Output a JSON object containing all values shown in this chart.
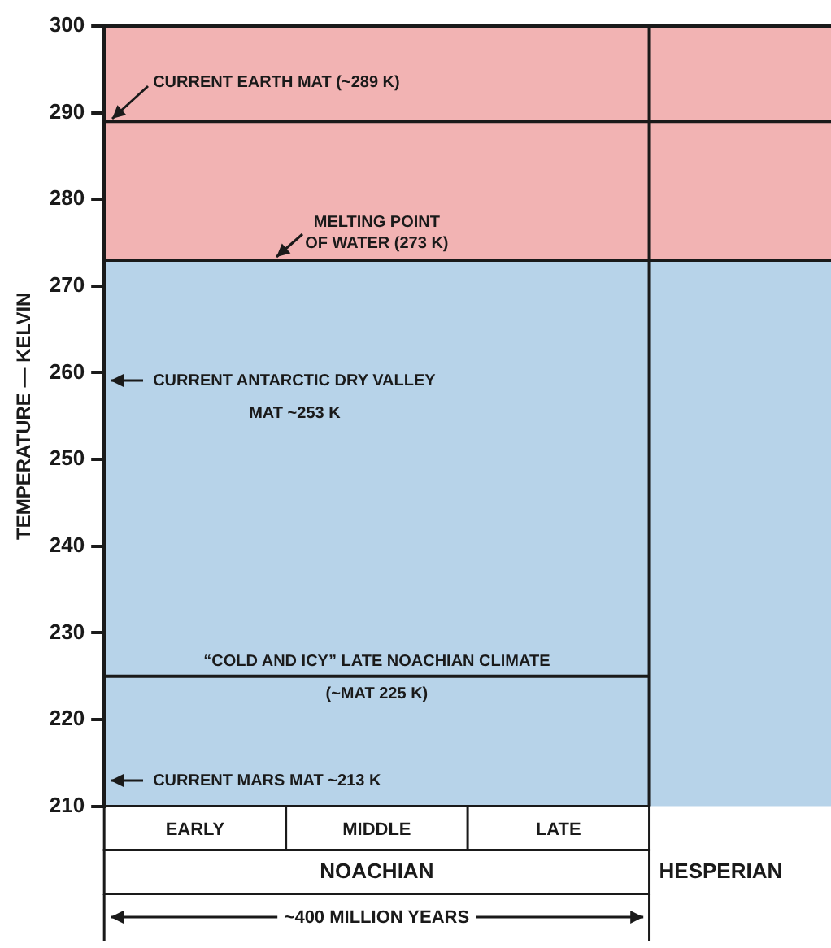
{
  "chart_data": {
    "type": "bar",
    "ylabel": "TEMPERATURE — KELVIN",
    "categories": [
      "EARLY",
      "MIDDLE",
      "LATE",
      null
    ],
    "ylim": [
      210,
      300
    ],
    "yticks": [
      210,
      220,
      230,
      240,
      250,
      260,
      270,
      280,
      290,
      300
    ],
    "bands": [
      {
        "axis": "y",
        "from": 210,
        "to": 273,
        "color": "#b7d3e9"
      },
      {
        "axis": "y",
        "from": 273,
        "to": 300,
        "color": "#f2b3b3"
      }
    ],
    "ref_lines": [
      {
        "axis": "y",
        "value": 289,
        "label": "CURRENT EARTH MAT (~289 K)",
        "color": "#1a1a1a"
      },
      {
        "axis": "y",
        "value": 273,
        "label": "MELTING POINT OF WATER (273 K)",
        "color": "#1a1a1a"
      },
      {
        "axis": "y",
        "value": 225,
        "label": "“COLD AND ICY” LATE NOACHIAN CLIMATE (~MAT 225 K)",
        "color": "#1a1a1a"
      }
    ],
    "annotations": [
      "CURRENT ANTARCTIC DRY VALLEY MAT ~253 K",
      "CURRENT MARS MAT ~213 K",
      "NOACHIAN",
      "HESPERIAN",
      "~400 MILLION YEARS"
    ]
  }
}
